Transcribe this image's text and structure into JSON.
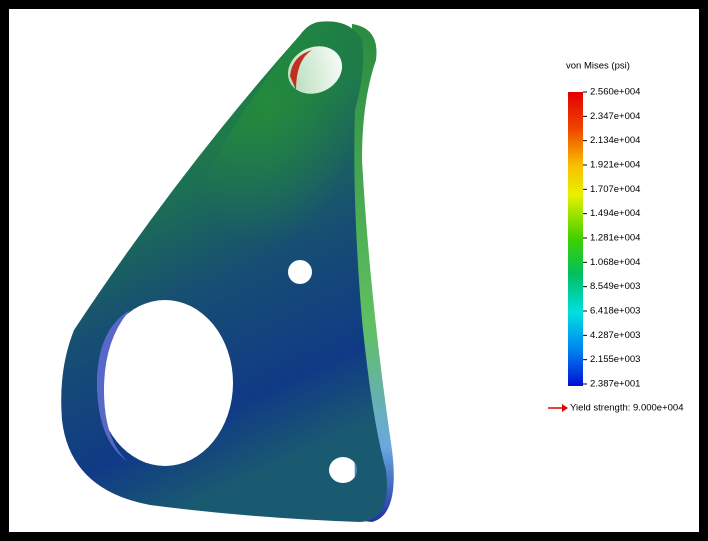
{
  "legend": {
    "title": "von Mises (psi)",
    "labels": [
      "2.560e+004",
      "2.347e+004",
      "2.134e+004",
      "1.921e+004",
      "1.707e+004",
      "1.494e+004",
      "1.281e+004",
      "1.068e+004",
      "8.549e+003",
      "6.418e+003",
      "4.287e+003",
      "2.155e+003",
      "2.387e+001"
    ],
    "yield_label": "Yield strength: 9.000e+004"
  }
}
